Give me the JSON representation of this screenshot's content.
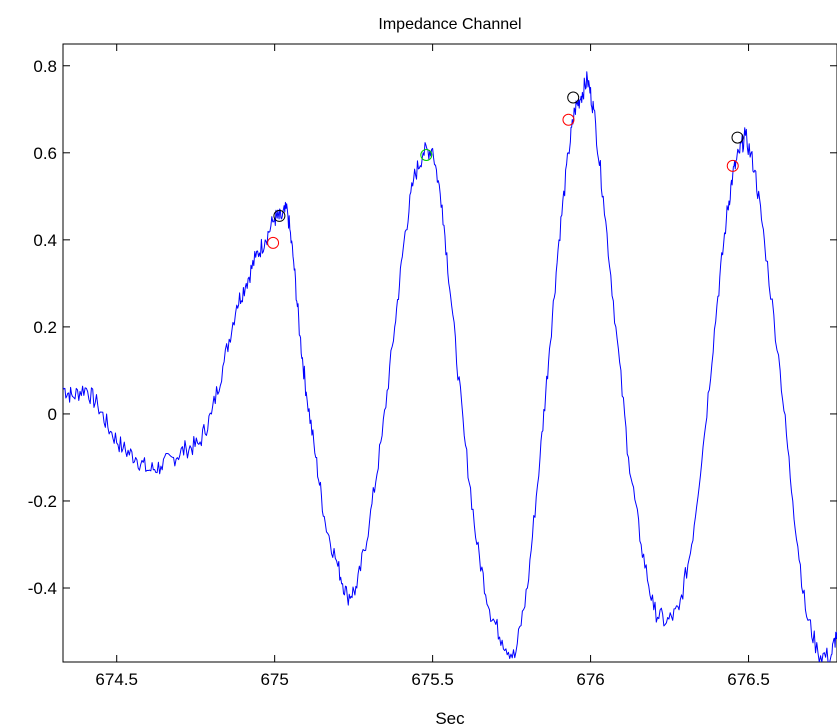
{
  "chart_data": {
    "type": "line",
    "title": "Impedance Channel",
    "xlabel": "Sec",
    "ylabel": "",
    "xlim": [
      674.33,
      676.78
    ],
    "ylim": [
      -0.57,
      0.85
    ],
    "xticks": [
      674.5,
      675,
      675.5,
      676,
      676.5
    ],
    "xtick_labels": [
      "674.5",
      "675",
      "675.5",
      "676",
      "676.5"
    ],
    "yticks": [
      -0.4,
      -0.2,
      0,
      0.2,
      0.4,
      0.6,
      0.8
    ],
    "ytick_labels": [
      "-0.4",
      "-0.2",
      "0",
      "0.2",
      "0.4",
      "0.6",
      "0.8"
    ],
    "grid": false,
    "line_color": "#0000ff",
    "series": [
      {
        "x": [
          674.33,
          674.36,
          674.4,
          674.44,
          674.48,
          674.52,
          674.56,
          674.6,
          674.64,
          674.68,
          674.72,
          674.76,
          674.8,
          674.84,
          674.88,
          674.91,
          674.94,
          674.97,
          675.0,
          675.02,
          675.04,
          675.06,
          675.08,
          675.1,
          675.13,
          675.16,
          675.2,
          675.23,
          675.26,
          675.3,
          675.34,
          675.38,
          675.41,
          675.44,
          675.47,
          675.5,
          675.53,
          675.56,
          675.6,
          675.64,
          675.68,
          675.72,
          675.76,
          675.8,
          675.84,
          675.87,
          675.9,
          675.93,
          675.95,
          675.97,
          675.99,
          676.01,
          676.04,
          676.08,
          676.12,
          676.16,
          676.2,
          676.24,
          676.28,
          676.32,
          676.36,
          676.4,
          676.43,
          676.45,
          676.47,
          676.49,
          676.52,
          676.55,
          676.6,
          676.64,
          676.68,
          676.72,
          676.76,
          676.78
        ],
        "y": [
          0.06,
          0.04,
          0.06,
          0.02,
          -0.04,
          -0.08,
          -0.1,
          -0.13,
          -0.12,
          -0.1,
          -0.08,
          -0.07,
          0.0,
          0.12,
          0.25,
          0.3,
          0.36,
          0.4,
          0.45,
          0.45,
          0.47,
          0.35,
          0.18,
          0.05,
          -0.1,
          -0.25,
          -0.35,
          -0.42,
          -0.4,
          -0.25,
          -0.05,
          0.2,
          0.4,
          0.54,
          0.6,
          0.61,
          0.48,
          0.25,
          -0.05,
          -0.3,
          -0.45,
          -0.52,
          -0.56,
          -0.4,
          -0.1,
          0.15,
          0.4,
          0.6,
          0.7,
          0.73,
          0.77,
          0.7,
          0.5,
          0.2,
          -0.1,
          -0.3,
          -0.45,
          -0.48,
          -0.45,
          -0.3,
          -0.05,
          0.25,
          0.45,
          0.55,
          0.6,
          0.64,
          0.56,
          0.4,
          0.1,
          -0.2,
          -0.45,
          -0.55,
          -0.56,
          -0.5
        ]
      }
    ],
    "markers": [
      {
        "color": "#ff0000",
        "x": 674.995,
        "y": 0.393
      },
      {
        "color": "#000000",
        "x": 675.015,
        "y": 0.455
      },
      {
        "color": "#00cc00",
        "x": 675.48,
        "y": 0.595
      },
      {
        "color": "#ff0000",
        "x": 675.93,
        "y": 0.676
      },
      {
        "color": "#000000",
        "x": 675.945,
        "y": 0.727
      },
      {
        "color": "#ff0000",
        "x": 676.45,
        "y": 0.57
      },
      {
        "color": "#000000",
        "x": 676.465,
        "y": 0.635
      }
    ]
  }
}
